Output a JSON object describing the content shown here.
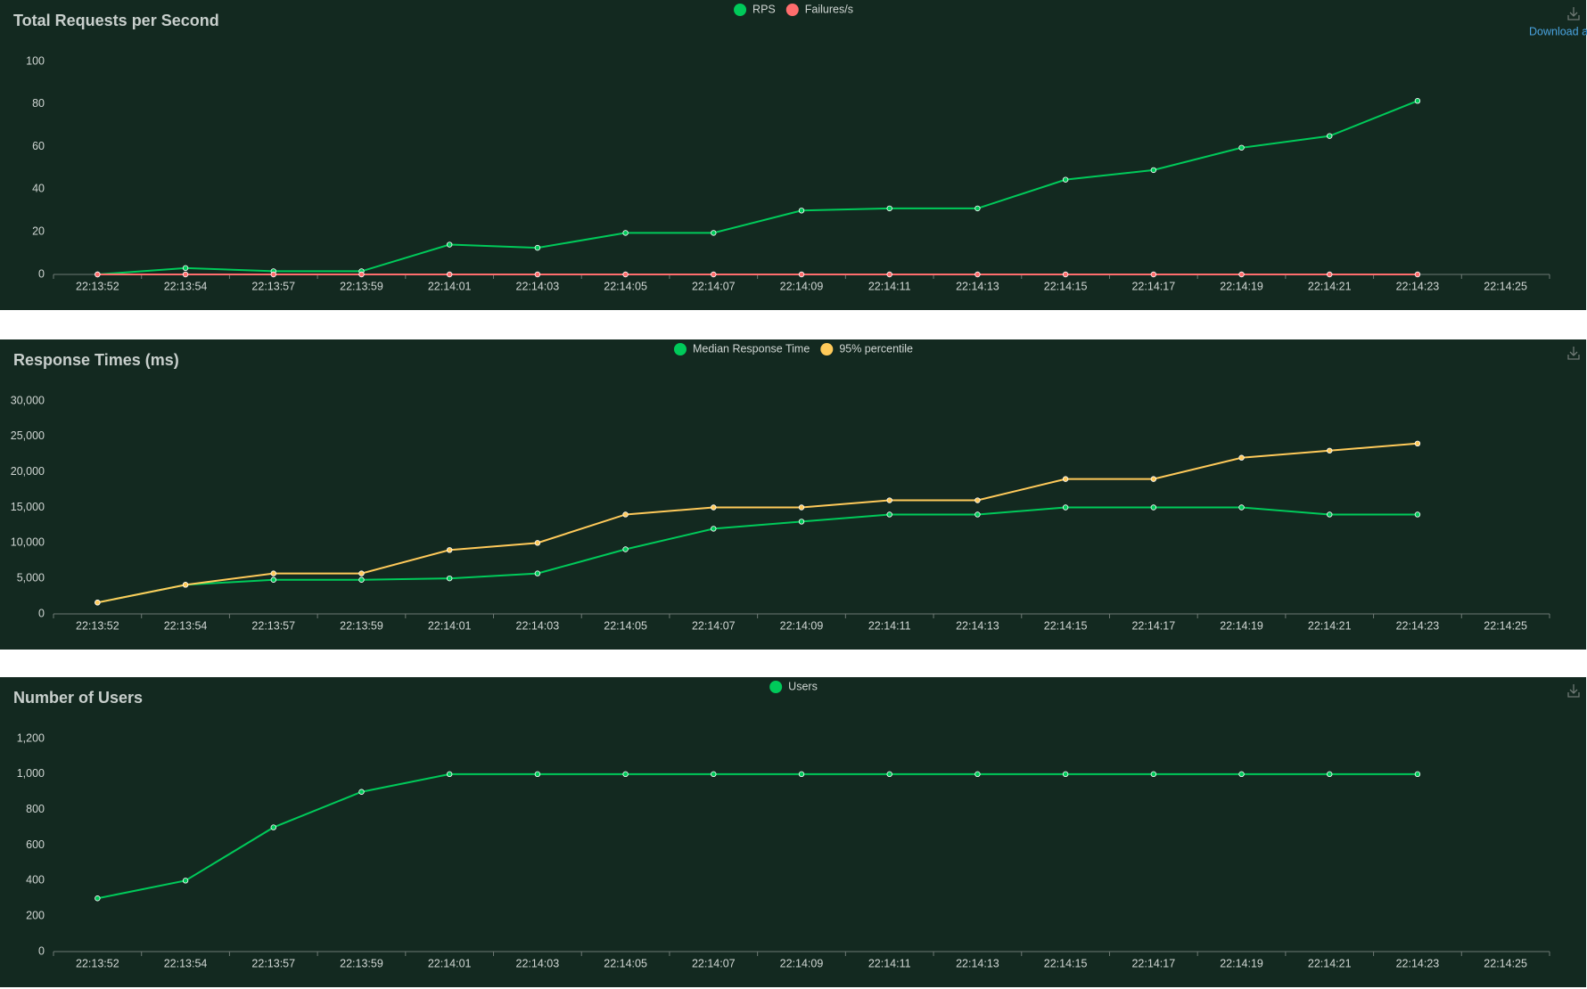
{
  "chart_data": [
    {
      "type": "line",
      "title": "Total Requests per Second",
      "download_label": "Download a",
      "categories": [
        "22:13:52",
        "22:13:54",
        "22:13:57",
        "22:13:59",
        "22:14:01",
        "22:14:03",
        "22:14:05",
        "22:14:07",
        "22:14:09",
        "22:14:11",
        "22:14:13",
        "22:14:15",
        "22:14:17",
        "22:14:19",
        "22:14:21",
        "22:14:23",
        "22:14:25"
      ],
      "series": [
        {
          "name": "RPS",
          "color": "#00ca5a",
          "values": [
            0,
            3,
            1.5,
            1.5,
            14,
            12.5,
            19.5,
            19.5,
            30,
            31,
            31,
            44.5,
            49,
            59.5,
            65,
            81.5,
            null
          ]
        },
        {
          "name": "Failures/s",
          "color": "#ff6d6d",
          "values": [
            0,
            0,
            0,
            0,
            0,
            0,
            0,
            0,
            0,
            0,
            0,
            0,
            0,
            0,
            0,
            0,
            null
          ]
        }
      ],
      "ylim": [
        0,
        100
      ],
      "yticks": [
        0,
        20,
        40,
        60,
        80,
        100
      ]
    },
    {
      "type": "line",
      "title": "Response Times (ms)",
      "categories": [
        "22:13:52",
        "22:13:54",
        "22:13:57",
        "22:13:59",
        "22:14:01",
        "22:14:03",
        "22:14:05",
        "22:14:07",
        "22:14:09",
        "22:14:11",
        "22:14:13",
        "22:14:15",
        "22:14:17",
        "22:14:19",
        "22:14:21",
        "22:14:23",
        "22:14:25"
      ],
      "series": [
        {
          "name": "Median Response Time",
          "color": "#00ca5a",
          "values": [
            1600,
            4100,
            4800,
            4800,
            5000,
            5700,
            9100,
            12000,
            13000,
            14000,
            14000,
            15000,
            15000,
            15000,
            14000,
            14000,
            null
          ]
        },
        {
          "name": "95% percentile",
          "color": "#ffca5a",
          "values": [
            1600,
            4100,
            5700,
            5700,
            9000,
            10000,
            14000,
            15000,
            15000,
            16000,
            16000,
            19000,
            19000,
            22000,
            23000,
            24000,
            null
          ]
        }
      ],
      "ylim": [
        0,
        30000
      ],
      "yticks": [
        0,
        {
          "value": 5000,
          "label": "5,000"
        },
        {
          "value": 10000,
          "label": "10,000"
        },
        {
          "value": 15000,
          "label": "15,000"
        },
        {
          "value": 20000,
          "label": "20,000"
        },
        {
          "value": 25000,
          "label": "25,000"
        },
        {
          "value": 30000,
          "label": "30,000"
        }
      ]
    },
    {
      "type": "line",
      "title": "Number of Users",
      "categories": [
        "22:13:52",
        "22:13:54",
        "22:13:57",
        "22:13:59",
        "22:14:01",
        "22:14:03",
        "22:14:05",
        "22:14:07",
        "22:14:09",
        "22:14:11",
        "22:14:13",
        "22:14:15",
        "22:14:17",
        "22:14:19",
        "22:14:21",
        "22:14:23",
        "22:14:25"
      ],
      "series": [
        {
          "name": "Users",
          "color": "#00ca5a",
          "values": [
            300,
            400,
            700,
            900,
            1000,
            1000,
            1000,
            1000,
            1000,
            1000,
            1000,
            1000,
            1000,
            1000,
            1000,
            1000,
            null
          ]
        }
      ],
      "ylim": [
        0,
        1200
      ],
      "yticks": [
        0,
        200,
        400,
        600,
        800,
        {
          "value": 1000,
          "label": "1,000"
        },
        {
          "value": 1200,
          "label": "1,200"
        }
      ]
    }
  ]
}
